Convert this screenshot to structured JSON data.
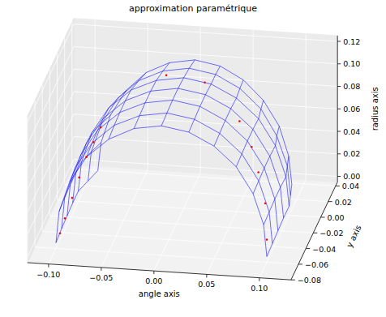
{
  "chart_data": {
    "type": "surface3d",
    "title": "approximation paramétrique",
    "x_label": "angle axis",
    "y_label": "y axis",
    "z_label": "radius axis",
    "xlim": [
      -0.12,
      0.13
    ],
    "ylim": [
      -0.08,
      0.045
    ],
    "zlim": [
      -0.005,
      0.125
    ],
    "xticks": [
      {
        "value": -0.1,
        "label": "−0.10"
      },
      {
        "value": -0.05,
        "label": "−0.05"
      },
      {
        "value": 0,
        "label": "0.00"
      },
      {
        "value": 0.05,
        "label": "0.05"
      },
      {
        "value": 0.1,
        "label": "0.10"
      }
    ],
    "yticks": [
      {
        "value": -0.08,
        "label": "−0.08"
      },
      {
        "value": -0.06,
        "label": "−0.06"
      },
      {
        "value": -0.04,
        "label": "−0.04"
      },
      {
        "value": -0.02,
        "label": "−0.02"
      },
      {
        "value": 0,
        "label": "0.00"
      },
      {
        "value": 0.02,
        "label": "0.02"
      },
      {
        "value": 0.04,
        "label": "0.04"
      }
    ],
    "zticks": [
      {
        "value": 0,
        "label": "0.00"
      },
      {
        "value": 0.02,
        "label": "0.02"
      },
      {
        "value": 0.04,
        "label": "0.04"
      },
      {
        "value": 0.06,
        "label": "0.06"
      },
      {
        "value": 0.08,
        "label": "0.08"
      },
      {
        "value": 0.1,
        "label": "0.10"
      },
      {
        "value": 0.12,
        "label": "0.12"
      }
    ],
    "grid": true,
    "surface": {
      "color": "#0000ff",
      "line_style": "solid",
      "x": [
        [
          -0.1,
          -0.097,
          -0.087,
          -0.071,
          -0.05,
          -0.026,
          0.0,
          0.026,
          0.05,
          0.071,
          0.087,
          0.097,
          0.1
        ],
        [
          -0.1,
          -0.097,
          -0.087,
          -0.071,
          -0.05,
          -0.026,
          0.0,
          0.026,
          0.05,
          0.071,
          0.087,
          0.097,
          0.1
        ],
        [
          -0.1,
          -0.097,
          -0.087,
          -0.071,
          -0.05,
          -0.026,
          0.0,
          0.026,
          0.05,
          0.071,
          0.087,
          0.097,
          0.1
        ],
        [
          -0.1,
          -0.097,
          -0.087,
          -0.071,
          -0.05,
          -0.026,
          0.0,
          0.026,
          0.05,
          0.071,
          0.087,
          0.097,
          0.1
        ],
        [
          -0.1,
          -0.097,
          -0.087,
          -0.071,
          -0.05,
          -0.026,
          0.0,
          0.026,
          0.05,
          0.071,
          0.087,
          0.097,
          0.1
        ],
        [
          -0.096,
          -0.093,
          -0.083,
          -0.068,
          -0.048,
          -0.025,
          0.0,
          0.025,
          0.048,
          0.068,
          0.083,
          0.093,
          0.096
        ],
        [
          -0.092,
          -0.089,
          -0.08,
          -0.065,
          -0.046,
          -0.024,
          0.0,
          0.024,
          0.046,
          0.065,
          0.08,
          0.089,
          0.092
        ]
      ],
      "y": [
        [
          -0.06,
          -0.06,
          -0.06,
          -0.06,
          -0.06,
          -0.06,
          -0.06,
          -0.06,
          -0.06,
          -0.06,
          -0.06,
          -0.06,
          -0.06
        ],
        [
          -0.045,
          -0.045,
          -0.045,
          -0.045,
          -0.045,
          -0.045,
          -0.045,
          -0.045,
          -0.045,
          -0.045,
          -0.045,
          -0.045,
          -0.045
        ],
        [
          -0.03,
          -0.03,
          -0.03,
          -0.03,
          -0.03,
          -0.03,
          -0.03,
          -0.03,
          -0.03,
          -0.03,
          -0.03,
          -0.03,
          -0.03
        ],
        [
          -0.015,
          -0.015,
          -0.015,
          -0.015,
          -0.015,
          -0.015,
          -0.015,
          -0.015,
          -0.015,
          -0.015,
          -0.015,
          -0.015,
          -0.015
        ],
        [
          0.0,
          0.0,
          0.0,
          0.0,
          0.0,
          0.0,
          0.0,
          0.0,
          0.0,
          0.0,
          0.0,
          0.0,
          0.0
        ],
        [
          0.015,
          0.015,
          0.015,
          0.015,
          0.015,
          0.015,
          0.015,
          0.015,
          0.015,
          0.015,
          0.015,
          0.015,
          0.015
        ],
        [
          0.03,
          0.03,
          0.03,
          0.03,
          0.03,
          0.03,
          0.03,
          0.03,
          0.03,
          0.03,
          0.03,
          0.03,
          0.03
        ]
      ],
      "z": [
        [
          0.0,
          0.028,
          0.055,
          0.078,
          0.095,
          0.106,
          0.11,
          0.106,
          0.095,
          0.078,
          0.055,
          0.028,
          0.0
        ],
        [
          0.002,
          0.03,
          0.057,
          0.08,
          0.097,
          0.107,
          0.111,
          0.107,
          0.096,
          0.079,
          0.056,
          0.029,
          0.001
        ],
        [
          0.003,
          0.031,
          0.058,
          0.081,
          0.098,
          0.108,
          0.112,
          0.108,
          0.097,
          0.08,
          0.057,
          0.03,
          0.002
        ],
        [
          0.004,
          0.031,
          0.058,
          0.081,
          0.098,
          0.108,
          0.112,
          0.108,
          0.097,
          0.08,
          0.057,
          0.03,
          0.003
        ],
        [
          0.004,
          0.03,
          0.057,
          0.08,
          0.097,
          0.107,
          0.111,
          0.107,
          0.096,
          0.079,
          0.056,
          0.029,
          0.003
        ],
        [
          0.003,
          0.029,
          0.055,
          0.078,
          0.095,
          0.105,
          0.109,
          0.105,
          0.094,
          0.077,
          0.054,
          0.028,
          0.002
        ],
        [
          0.002,
          0.027,
          0.052,
          0.075,
          0.092,
          0.102,
          0.106,
          0.102,
          0.091,
          0.074,
          0.052,
          0.026,
          0.001
        ]
      ]
    },
    "points": {
      "color": "#ff0000",
      "marker": "dot",
      "x": [
        -0.098,
        -0.095,
        -0.09,
        -0.085,
        -0.08,
        -0.075,
        -0.07,
        0.06,
        0.075,
        0.085,
        0.095,
        0.1,
        -0.02,
        0.02
      ],
      "y": [
        -0.055,
        -0.05,
        -0.045,
        -0.04,
        -0.035,
        -0.03,
        -0.025,
        -0.02,
        -0.03,
        -0.04,
        -0.05,
        -0.06,
        0.01,
        0.0
      ],
      "z": [
        0.005,
        0.015,
        0.03,
        0.045,
        0.06,
        0.07,
        0.08,
        0.09,
        0.075,
        0.06,
        0.04,
        0.015,
        0.105,
        0.108
      ]
    }
  }
}
